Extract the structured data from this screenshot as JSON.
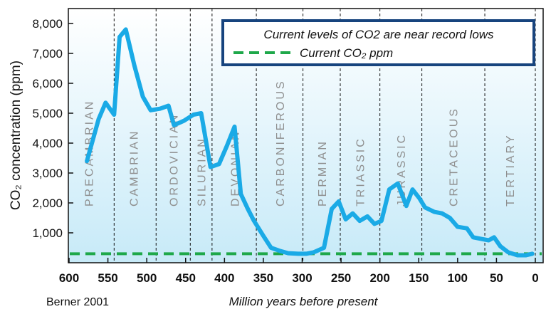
{
  "chart_data": {
    "type": "line",
    "title": "Current levels of CO2 are near record lows",
    "ylabel": "CO₂ concentration (ppm)",
    "xlabel": "Million years before present",
    "source": "Berner 2001",
    "x_reversed": true,
    "xlim": [
      600,
      0
    ],
    "ylim": [
      0,
      8500
    ],
    "x_ticks": [
      {
        "value": 600,
        "label": "600"
      },
      {
        "value": 550,
        "label": "550"
      },
      {
        "value": 500,
        "label": "500"
      },
      {
        "value": 450,
        "label": "450"
      },
      {
        "value": 400,
        "label": "400"
      },
      {
        "value": 350,
        "label": "350"
      },
      {
        "value": 300,
        "label": "300"
      },
      {
        "value": 250,
        "label": "250"
      },
      {
        "value": 200,
        "label": "200"
      },
      {
        "value": 150,
        "label": "150"
      },
      {
        "value": 100,
        "label": "100"
      },
      {
        "value": 50,
        "label": "50"
      },
      {
        "value": 0,
        "label": "0"
      }
    ],
    "y_ticks": [
      {
        "value": 1000,
        "label": "1,000"
      },
      {
        "value": 2000,
        "label": "2,000"
      },
      {
        "value": 3000,
        "label": "3,000"
      },
      {
        "value": 4000,
        "label": "4,000"
      },
      {
        "value": 5000,
        "label": "5,000"
      },
      {
        "value": 6000,
        "label": "6,000"
      },
      {
        "value": 7000,
        "label": "7,000"
      },
      {
        "value": 8000,
        "label": "8,000"
      }
    ],
    "period_boundaries": [
      542,
      488,
      444,
      416,
      359,
      299,
      251,
      200,
      146,
      65
    ],
    "periods": [
      {
        "label": "PRECAMBRIAN",
        "x": 575
      },
      {
        "label": "CAMBRIAN",
        "x": 517
      },
      {
        "label": "ORDOVICIAN",
        "x": 466
      },
      {
        "label": "SILURIAN",
        "x": 430
      },
      {
        "label": "DEVONIAN",
        "x": 387
      },
      {
        "label": "CARBONIFEROUS",
        "x": 329
      },
      {
        "label": "PERMIAN",
        "x": 275
      },
      {
        "label": "TRIASSIC",
        "x": 226
      },
      {
        "label": "JURASSIC",
        "x": 173
      },
      {
        "label": "CRETACEOUS",
        "x": 106
      },
      {
        "label": "TERTIARY",
        "x": 33
      }
    ],
    "series": [
      {
        "color": "#1aaae6",
        "x": [
          577,
          562,
          553,
          542,
          535,
          527,
          516,
          505,
          495,
          483,
          472,
          465,
          452,
          440,
          430,
          418,
          407,
          397,
          387,
          379,
          370,
          362,
          350,
          340,
          329,
          318,
          305,
          295,
          285,
          272,
          262,
          253,
          244,
          235,
          226,
          216,
          207,
          198,
          188,
          177,
          166,
          158,
          149,
          142,
          130,
          120,
          110,
          100,
          88,
          80,
          70,
          60,
          53,
          45,
          35,
          23,
          12,
          4
        ],
        "y": [
          3400,
          4800,
          5350,
          4950,
          7550,
          7800,
          6600,
          5550,
          5100,
          5150,
          5250,
          4600,
          4750,
          4950,
          5000,
          3200,
          3300,
          3900,
          4550,
          2300,
          1800,
          1400,
          900,
          500,
          400,
          320,
          300,
          300,
          350,
          500,
          1800,
          2050,
          1450,
          1650,
          1400,
          1550,
          1300,
          1400,
          2450,
          2650,
          1900,
          2450,
          2150,
          1850,
          1700,
          1650,
          1500,
          1200,
          1150,
          850,
          800,
          750,
          850,
          550,
          350,
          250,
          250,
          300
        ]
      }
    ],
    "reference_line": {
      "value": 300,
      "label": "Current CO₂ ppm",
      "color": "#1fa84a",
      "style": "dashed"
    },
    "grid": "vertical dashed period boundaries",
    "legend_position": "top-right",
    "background": {
      "top": "#ffffff",
      "bottom": "#c7eaf8"
    }
  }
}
